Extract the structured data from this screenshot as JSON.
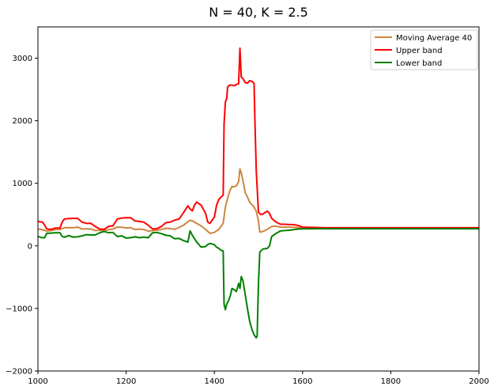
{
  "chart_data": {
    "type": "line",
    "title": "N = 40, K = 2.5",
    "xlabel": "",
    "ylabel": "",
    "xlim": [
      1000,
      2000
    ],
    "ylim": [
      -2000,
      3500
    ],
    "x_ticks": [
      1000,
      1200,
      1400,
      1600,
      1800,
      2000
    ],
    "y_ticks": [
      -2000,
      -1000,
      0,
      1000,
      2000,
      3000
    ],
    "x_tick_labels": [
      "1000",
      "1200",
      "1400",
      "1600",
      "1800",
      "2000"
    ],
    "y_tick_labels": [
      "−2000",
      "−1000",
      "0",
      "1000",
      "2000",
      "3000"
    ],
    "grid": false,
    "legend_position": "top-right",
    "series": [
      {
        "name": "Moving Average 40",
        "color": "#cd853f",
        "points": [
          [
            1000,
            270
          ],
          [
            1010,
            260
          ],
          [
            1020,
            235
          ],
          [
            1030,
            245
          ],
          [
            1040,
            260
          ],
          [
            1050,
            262
          ],
          [
            1060,
            290
          ],
          [
            1070,
            292
          ],
          [
            1080,
            290
          ],
          [
            1090,
            300
          ],
          [
            1100,
            270
          ],
          [
            1110,
            272
          ],
          [
            1120,
            270
          ],
          [
            1130,
            245
          ],
          [
            1140,
            250
          ],
          [
            1150,
            245
          ],
          [
            1160,
            258
          ],
          [
            1170,
            270
          ],
          [
            1180,
            300
          ],
          [
            1190,
            298
          ],
          [
            1200,
            285
          ],
          [
            1210,
            290
          ],
          [
            1220,
            262
          ],
          [
            1230,
            268
          ],
          [
            1240,
            262
          ],
          [
            1250,
            235
          ],
          [
            1260,
            245
          ],
          [
            1270,
            250
          ],
          [
            1280,
            262
          ],
          [
            1290,
            282
          ],
          [
            1300,
            275
          ],
          [
            1310,
            265
          ],
          [
            1320,
            295
          ],
          [
            1330,
            330
          ],
          [
            1340,
            385
          ],
          [
            1345,
            410
          ],
          [
            1350,
            400
          ],
          [
            1360,
            360
          ],
          [
            1370,
            320
          ],
          [
            1380,
            265
          ],
          [
            1390,
            200
          ],
          [
            1400,
            215
          ],
          [
            1410,
            265
          ],
          [
            1420,
            360
          ],
          [
            1425,
            620
          ],
          [
            1430,
            760
          ],
          [
            1435,
            880
          ],
          [
            1440,
            950
          ],
          [
            1445,
            945
          ],
          [
            1450,
            960
          ],
          [
            1455,
            1030
          ],
          [
            1458,
            1230
          ],
          [
            1462,
            1140
          ],
          [
            1466,
            1000
          ],
          [
            1470,
            850
          ],
          [
            1475,
            780
          ],
          [
            1480,
            700
          ],
          [
            1485,
            660
          ],
          [
            1490,
            620
          ],
          [
            1495,
            555
          ],
          [
            1500,
            400
          ],
          [
            1503,
            220
          ],
          [
            1510,
            230
          ],
          [
            1520,
            265
          ],
          [
            1530,
            310
          ],
          [
            1540,
            315
          ],
          [
            1550,
            300
          ],
          [
            1560,
            300
          ],
          [
            1570,
            300
          ],
          [
            1580,
            298
          ],
          [
            1590,
            290
          ],
          [
            1600,
            285
          ],
          [
            1650,
            282
          ],
          [
            1700,
            282
          ],
          [
            1800,
            282
          ],
          [
            1900,
            282
          ],
          [
            2000,
            282
          ]
        ]
      },
      {
        "name": "Upper band",
        "color": "#ff0000",
        "points": [
          [
            1000,
            390
          ],
          [
            1010,
            380
          ],
          [
            1015,
            335
          ],
          [
            1020,
            270
          ],
          [
            1030,
            265
          ],
          [
            1040,
            285
          ],
          [
            1050,
            285
          ],
          [
            1055,
            380
          ],
          [
            1060,
            430
          ],
          [
            1070,
            435
          ],
          [
            1080,
            440
          ],
          [
            1090,
            440
          ],
          [
            1100,
            380
          ],
          [
            1110,
            360
          ],
          [
            1120,
            360
          ],
          [
            1130,
            310
          ],
          [
            1140,
            270
          ],
          [
            1150,
            265
          ],
          [
            1160,
            310
          ],
          [
            1170,
            320
          ],
          [
            1180,
            430
          ],
          [
            1190,
            445
          ],
          [
            1200,
            450
          ],
          [
            1210,
            450
          ],
          [
            1220,
            400
          ],
          [
            1230,
            390
          ],
          [
            1240,
            380
          ],
          [
            1250,
            330
          ],
          [
            1260,
            270
          ],
          [
            1270,
            275
          ],
          [
            1280,
            310
          ],
          [
            1290,
            370
          ],
          [
            1300,
            380
          ],
          [
            1310,
            410
          ],
          [
            1320,
            430
          ],
          [
            1330,
            530
          ],
          [
            1340,
            640
          ],
          [
            1345,
            590
          ],
          [
            1350,
            560
          ],
          [
            1355,
            650
          ],
          [
            1360,
            700
          ],
          [
            1370,
            650
          ],
          [
            1380,
            520
          ],
          [
            1385,
            380
          ],
          [
            1390,
            360
          ],
          [
            1400,
            460
          ],
          [
            1405,
            650
          ],
          [
            1410,
            740
          ],
          [
            1415,
            780
          ],
          [
            1420,
            810
          ],
          [
            1422,
            1950
          ],
          [
            1425,
            2300
          ],
          [
            1428,
            2350
          ],
          [
            1430,
            2540
          ],
          [
            1435,
            2570
          ],
          [
            1440,
            2570
          ],
          [
            1445,
            2560
          ],
          [
            1450,
            2580
          ],
          [
            1455,
            2590
          ],
          [
            1458,
            3160
          ],
          [
            1461,
            2700
          ],
          [
            1465,
            2670
          ],
          [
            1470,
            2610
          ],
          [
            1475,
            2600
          ],
          [
            1480,
            2640
          ],
          [
            1485,
            2630
          ],
          [
            1490,
            2600
          ],
          [
            1492,
            2000
          ],
          [
            1495,
            1200
          ],
          [
            1500,
            540
          ],
          [
            1505,
            500
          ],
          [
            1510,
            510
          ],
          [
            1520,
            555
          ],
          [
            1525,
            520
          ],
          [
            1530,
            440
          ],
          [
            1540,
            380
          ],
          [
            1550,
            345
          ],
          [
            1560,
            345
          ],
          [
            1570,
            340
          ],
          [
            1580,
            340
          ],
          [
            1590,
            325
          ],
          [
            1600,
            300
          ],
          [
            1650,
            290
          ],
          [
            1700,
            290
          ],
          [
            1800,
            290
          ],
          [
            1900,
            290
          ],
          [
            2000,
            290
          ]
        ]
      },
      {
        "name": "Lower band",
        "color": "#008000",
        "points": [
          [
            1000,
            150
          ],
          [
            1010,
            130
          ],
          [
            1015,
            130
          ],
          [
            1020,
            200
          ],
          [
            1030,
            205
          ],
          [
            1040,
            210
          ],
          [
            1050,
            210
          ],
          [
            1055,
            150
          ],
          [
            1060,
            140
          ],
          [
            1070,
            165
          ],
          [
            1080,
            140
          ],
          [
            1090,
            145
          ],
          [
            1100,
            160
          ],
          [
            1110,
            180
          ],
          [
            1120,
            175
          ],
          [
            1130,
            175
          ],
          [
            1140,
            210
          ],
          [
            1150,
            230
          ],
          [
            1160,
            210
          ],
          [
            1170,
            215
          ],
          [
            1180,
            150
          ],
          [
            1190,
            160
          ],
          [
            1200,
            125
          ],
          [
            1210,
            130
          ],
          [
            1220,
            145
          ],
          [
            1230,
            130
          ],
          [
            1240,
            140
          ],
          [
            1250,
            130
          ],
          [
            1260,
            210
          ],
          [
            1270,
            215
          ],
          [
            1280,
            195
          ],
          [
            1290,
            170
          ],
          [
            1300,
            160
          ],
          [
            1310,
            115
          ],
          [
            1320,
            120
          ],
          [
            1330,
            85
          ],
          [
            1340,
            60
          ],
          [
            1345,
            240
          ],
          [
            1350,
            170
          ],
          [
            1360,
            60
          ],
          [
            1370,
            -20
          ],
          [
            1380,
            -10
          ],
          [
            1385,
            20
          ],
          [
            1390,
            40
          ],
          [
            1400,
            20
          ],
          [
            1405,
            -20
          ],
          [
            1410,
            -40
          ],
          [
            1415,
            -70
          ],
          [
            1420,
            -80
          ],
          [
            1422,
            -930
          ],
          [
            1425,
            -1020
          ],
          [
            1428,
            -930
          ],
          [
            1432,
            -880
          ],
          [
            1436,
            -800
          ],
          [
            1440,
            -680
          ],
          [
            1445,
            -700
          ],
          [
            1450,
            -730
          ],
          [
            1455,
            -600
          ],
          [
            1458,
            -680
          ],
          [
            1461,
            -490
          ],
          [
            1465,
            -560
          ],
          [
            1470,
            -780
          ],
          [
            1475,
            -1000
          ],
          [
            1480,
            -1200
          ],
          [
            1485,
            -1330
          ],
          [
            1490,
            -1420
          ],
          [
            1495,
            -1470
          ],
          [
            1497,
            -1440
          ],
          [
            1500,
            -600
          ],
          [
            1503,
            -100
          ],
          [
            1510,
            -50
          ],
          [
            1520,
            -40
          ],
          [
            1525,
            0
          ],
          [
            1530,
            150
          ],
          [
            1540,
            200
          ],
          [
            1550,
            240
          ],
          [
            1560,
            245
          ],
          [
            1570,
            250
          ],
          [
            1580,
            260
          ],
          [
            1590,
            270
          ],
          [
            1600,
            272
          ],
          [
            1650,
            274
          ],
          [
            1700,
            274
          ],
          [
            1800,
            274
          ],
          [
            1900,
            274
          ],
          [
            2000,
            274
          ]
        ]
      }
    ]
  }
}
